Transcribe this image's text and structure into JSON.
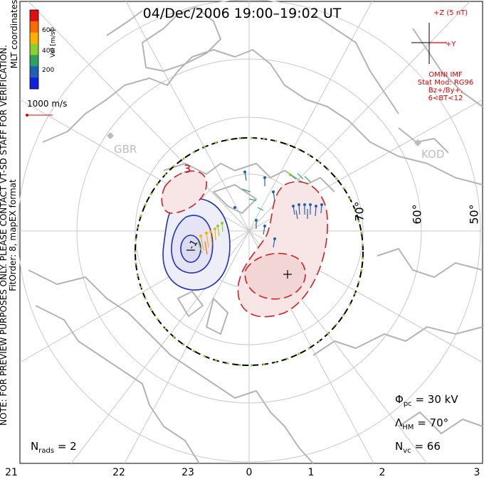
{
  "title": "04/Dec/2006 19:00–19:02 UT",
  "side_note": {
    "line1": "NOTE: FOR PREVIEW PURPOSES ONLY. PLEASE CONTACT VT-SD STAFF FOR VERIFICATION.",
    "line2": "FitOrder: 8, mapEX format"
  },
  "coordinates_label": "MLT coordinates",
  "colorbar": {
    "title": "Vel [m/s]",
    "ticks": [
      "600",
      "400",
      "200"
    ],
    "colors": [
      "#e01010",
      "#ff6a00",
      "#ffb000",
      "#8cd030",
      "#30a060",
      "#2060b0",
      "#1020e0"
    ]
  },
  "scale_vector_label": "1000 m/s",
  "imf": {
    "axis_z": "+Z (5 nT)",
    "axis_y": "+Y",
    "source": "OMNI IMF",
    "stat_mod": "Stat Mod: RG96",
    "condition": "Bz+/By+, 6<BT<12"
  },
  "stations": [
    {
      "code": "GBR"
    },
    {
      "code": "KOD"
    }
  ],
  "latitude_labels": [
    "70°",
    "60°",
    "50°"
  ],
  "mlt_labels": [
    "21",
    "22",
    "23",
    "0",
    "1",
    "2",
    "3"
  ],
  "contour_labels": {
    "negative": "-1",
    "positive": "3"
  },
  "stats": {
    "phi_symbol": "Φ",
    "phi_sub": "pc",
    "phi_value": "= 30 kV",
    "lambda_symbol": "Λ",
    "lambda_sub": "HM",
    "lambda_value": "= 70°",
    "n_symbol": "N",
    "n_sub": "vc",
    "n_value": "= 66"
  },
  "nrads": {
    "symbol": "N",
    "sub": "rads",
    "value": "= 2"
  },
  "colors": {
    "negative_cell": "#2030c0",
    "positive_cell": "#d02020",
    "grid": "#c8c8c8",
    "coast": "#b4b4b4",
    "hm_boundary_green": "#80d040"
  }
}
